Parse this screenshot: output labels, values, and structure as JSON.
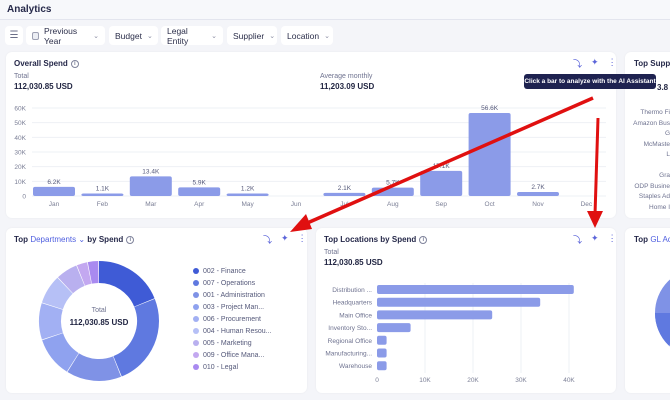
{
  "header": {
    "title": "Analytics"
  },
  "filters": {
    "settings_icon": "sliders-icon",
    "items": [
      {
        "label": "Previous Year",
        "icon": "calendar-icon"
      },
      {
        "label": "Budget"
      },
      {
        "label": "Legal Entity"
      },
      {
        "label": "Supplier"
      },
      {
        "label": "Location"
      }
    ]
  },
  "overall": {
    "title": "Overall Spend",
    "total_label": "Total",
    "total_value": "112,030.85 USD",
    "avg_label": "Average monthly",
    "avg_value": "11,203.09 USD",
    "tooltip": "Click a bar to analyze with the AI Assistant",
    "icons": [
      "drill-down-icon",
      "ai-sparkle-icon",
      "more-vertical-icon"
    ]
  },
  "chart_data": [
    {
      "type": "bar",
      "title": "Overall Spend",
      "categories": [
        "Jan",
        "Feb",
        "Mar",
        "Apr",
        "May",
        "Jun",
        "Jul",
        "Aug",
        "Sep",
        "Oct",
        "Nov",
        "Dec"
      ],
      "values": [
        6200,
        1100,
        13400,
        5900,
        1200,
        0,
        2100,
        5700,
        17100,
        56600,
        2700,
        0
      ],
      "labels": [
        "6.2K",
        "1.1K",
        "13.4K",
        "5.9K",
        "1.2K",
        "",
        "2.1K",
        "5.7K",
        "17.1K",
        "56.6K",
        "2.7K",
        ""
      ],
      "yticks": [
        "0",
        "10K",
        "20K",
        "30K",
        "40K",
        "50K",
        "60K"
      ],
      "ylim": [
        0,
        60000
      ],
      "grid": true
    },
    {
      "type": "pie",
      "title": "Top Departments by Spend",
      "center_label": "Total",
      "center_value": "112,030.85 USD",
      "categories": [
        "002 - Finance",
        "007 - Operations",
        "001 - Administration",
        "003 - Project Man...",
        "006 - Procurement",
        "004 - Human Resou...",
        "005 - Marketing",
        "009 - Office Mana...",
        "010 - Legal"
      ],
      "values_percent": [
        19,
        25,
        15,
        11,
        10,
        8,
        6,
        3,
        3
      ],
      "colors": [
        "#3f5bd6",
        "#5f79e0",
        "#7f92e6",
        "#8fa2ef",
        "#a2b0f3",
        "#b6c0f6",
        "#b9b0ef",
        "#c3a8f0",
        "#a98af0"
      ]
    },
    {
      "type": "bar",
      "orientation": "horizontal",
      "title": "Top Locations by Spend",
      "total_label": "Total",
      "total_value": "112,030.85 USD",
      "categories": [
        "Distribution ...",
        "Headquarters",
        "Main Office",
        "Inventory Sto...",
        "Regional Office",
        "Manufacturing...",
        "Warehouse"
      ],
      "values": [
        41000,
        34000,
        24000,
        7000,
        2000,
        2000,
        2000
      ],
      "xticks": [
        "0",
        "10K",
        "20K",
        "30K",
        "40K"
      ],
      "xlim": [
        0,
        45000
      ],
      "grid": true
    }
  ],
  "departments": {
    "title_prefix": "Top",
    "title_dim": "Departments",
    "title_suffix": "by Spend"
  },
  "suppliers": {
    "title": "Top Suppl",
    "total_partial": "3.8",
    "labels": [
      "Thermo Fi",
      "Amazon Bus",
      "G",
      "McMaste",
      "L",
      "",
      "Gra",
      "ODP Busine",
      "Staples Ad",
      "Home I"
    ]
  },
  "gl": {
    "title_prefix": "Top",
    "title_dim": "GL Ac"
  },
  "colors": {
    "bar": "#8b9be8",
    "accent": "#4f5fe0",
    "tooltip_bg": "#1e2250",
    "annotation_arrow": "#e01010"
  }
}
